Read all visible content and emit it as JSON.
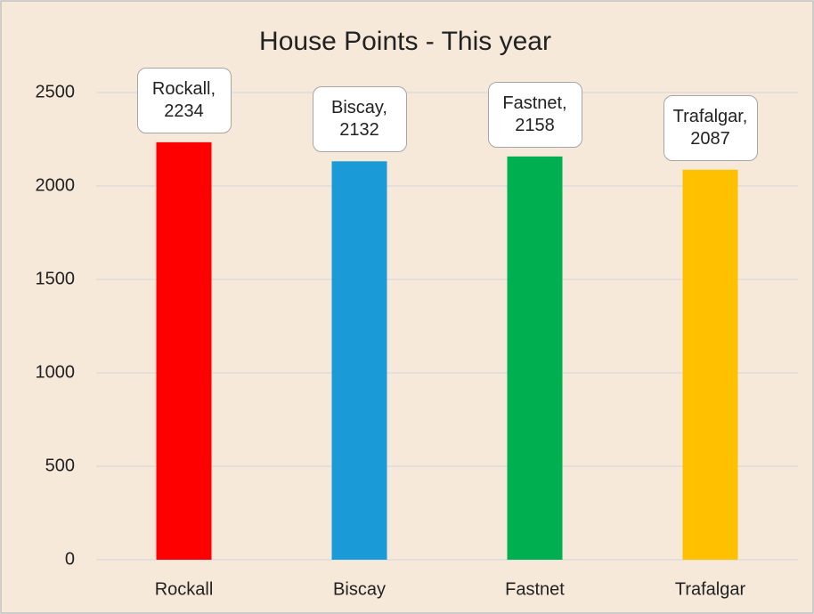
{
  "chart_data": {
    "type": "bar",
    "title": "House Points - This year",
    "categories": [
      "Rockall",
      "Biscay",
      "Fastnet",
      "Trafalgar"
    ],
    "values": [
      2234,
      2132,
      2158,
      2087
    ],
    "value_labels": [
      "Rockall,\n2234",
      "Biscay,\n2132",
      "Fastnet,\n2158",
      "Trafalgar,\n2087"
    ],
    "colors": [
      "#ff0000",
      "#1a9bd7",
      "#00b050",
      "#ffc000"
    ],
    "ylim": [
      0,
      2500
    ],
    "yticks": [
      0,
      500,
      1000,
      1500,
      2000,
      2500
    ],
    "grid": true
  }
}
